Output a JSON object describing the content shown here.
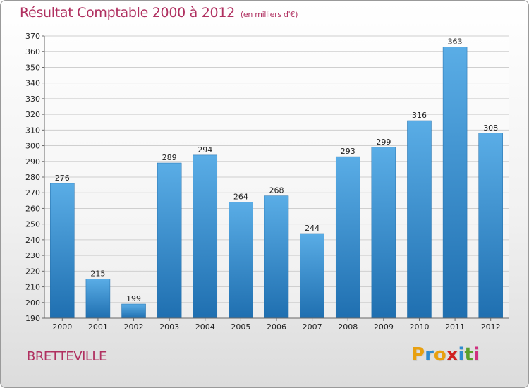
{
  "title": "Résultat Comptable 2000 à 2012",
  "subtitle": "(en milliers d'€)",
  "commune": "BRETTEVILLE",
  "logo": {
    "letters": [
      "P",
      "r",
      "o",
      "x",
      "i",
      "t",
      "i"
    ],
    "colors": [
      "#e8a010",
      "#2e8bd0",
      "#e8a010",
      "#d02020",
      "#2e8bd0",
      "#5aa02c",
      "#d03080"
    ]
  },
  "colors": {
    "title": "#b03060",
    "bar_top": "#5aade6",
    "bar_bottom": "#1f6fb0",
    "grid": "#cfcfcf"
  },
  "chart_data": {
    "type": "bar",
    "categories": [
      "2000",
      "2001",
      "2002",
      "2003",
      "2004",
      "2005",
      "2006",
      "2007",
      "2008",
      "2009",
      "2010",
      "2011",
      "2012"
    ],
    "values": [
      276,
      215,
      199,
      289,
      294,
      264,
      268,
      244,
      293,
      299,
      316,
      363,
      308
    ],
    "title": "Résultat Comptable 2000 à 2012",
    "xlabel": "",
    "ylabel": "",
    "ylim": [
      190,
      370
    ],
    "yticks": [
      190,
      200,
      210,
      220,
      230,
      240,
      250,
      260,
      270,
      280,
      290,
      300,
      310,
      320,
      330,
      340,
      350,
      360,
      370
    ],
    "grid": true,
    "legend": "none"
  }
}
